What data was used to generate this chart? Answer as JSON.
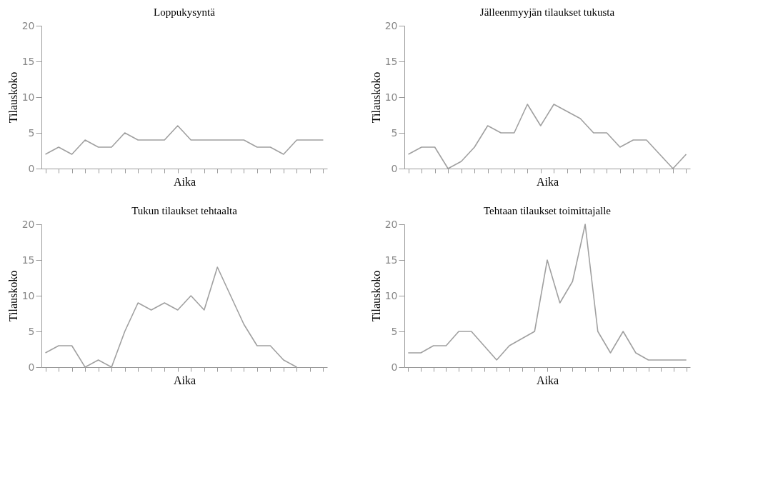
{
  "chart_data": [
    {
      "type": "line",
      "title": "Loppukysyntä",
      "xlabel": "Aika",
      "ylabel": "Tilauskoko",
      "categories": [
        null,
        null,
        null,
        null,
        null,
        null,
        null,
        null,
        null,
        null,
        null,
        null,
        null,
        null,
        null,
        null,
        null,
        null,
        null,
        null,
        null,
        null
      ],
      "values": [
        2,
        3,
        2,
        4,
        3,
        3,
        5,
        4,
        4,
        4,
        6,
        4,
        4,
        4,
        4,
        4,
        3,
        3,
        2,
        4,
        4,
        4
      ],
      "color": "#a0a0a0",
      "ylim": [
        0,
        20
      ],
      "yticks": [
        0,
        5,
        10,
        15,
        20
      ],
      "tick_labels": "y",
      "grid": false
    },
    {
      "type": "line",
      "title": "Jälleenmyyjän tilaukset tukusta",
      "xlabel": "Aika",
      "ylabel": "Tilauskoko",
      "categories": [
        null,
        null,
        null,
        null,
        null,
        null,
        null,
        null,
        null,
        null,
        null,
        null,
        null,
        null,
        null,
        null,
        null,
        null,
        null,
        null,
        null,
        null
      ],
      "values": [
        2,
        3,
        3,
        0,
        1,
        3,
        6,
        5,
        5,
        9,
        6,
        9,
        8,
        7,
        5,
        5,
        3,
        4,
        4,
        2,
        0,
        2
      ],
      "color": "#a0a0a0",
      "ylim": [
        0,
        20
      ],
      "yticks": [
        0,
        5,
        10,
        15,
        20
      ],
      "tick_labels": "y",
      "grid": false
    },
    {
      "type": "line",
      "title": "Tukun tilaukset tehtaalta",
      "xlabel": "Aika",
      "ylabel": "Tilauskoko",
      "categories": [
        null,
        null,
        null,
        null,
        null,
        null,
        null,
        null,
        null,
        null,
        null,
        null,
        null,
        null,
        null,
        null,
        null,
        null,
        null,
        null,
        null,
        null
      ],
      "values": [
        2,
        3,
        3,
        0,
        1,
        0,
        5,
        9,
        8,
        9,
        8,
        10,
        8,
        14,
        10,
        6,
        3,
        3,
        1,
        0,
        null,
        null
      ],
      "color": "#a0a0a0",
      "ylim": [
        0,
        20
      ],
      "yticks": [
        0,
        5,
        10,
        15,
        20
      ],
      "tick_labels": "y",
      "grid": false
    },
    {
      "type": "line",
      "title": "Tehtaan tilaukset toimittajalle",
      "xlabel": "Aika",
      "ylabel": "Tilauskoko",
      "categories": [
        null,
        null,
        null,
        null,
        null,
        null,
        null,
        null,
        null,
        null,
        null,
        null,
        null,
        null,
        null,
        null,
        null,
        null,
        null,
        null,
        null,
        null,
        null
      ],
      "values": [
        2,
        2,
        3,
        3,
        5,
        5,
        3,
        1,
        3,
        4,
        5,
        15,
        9,
        12,
        20,
        5,
        2,
        5,
        2,
        1,
        1,
        1,
        1
      ],
      "color": "#a0a0a0",
      "ylim": [
        0,
        20
      ],
      "yticks": [
        0,
        5,
        10,
        15,
        20
      ],
      "tick_labels": "y",
      "grid": false
    }
  ]
}
